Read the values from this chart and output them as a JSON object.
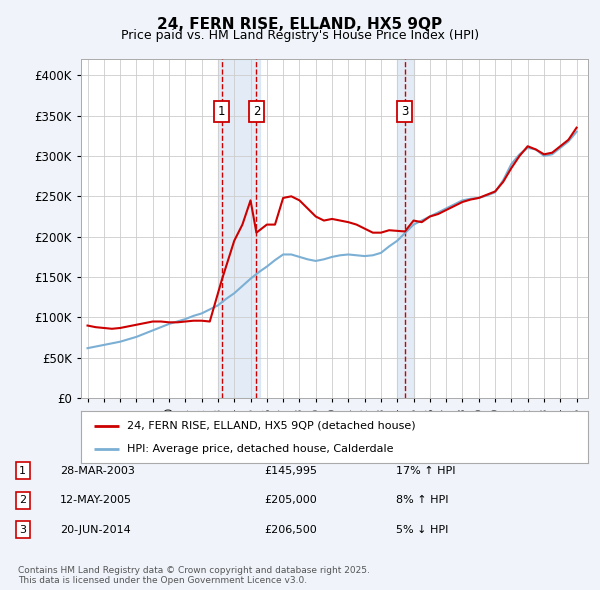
{
  "title1": "24, FERN RISE, ELLAND, HX5 9QP",
  "title2": "Price paid vs. HM Land Registry's House Price Index (HPI)",
  "legend_line1": "24, FERN RISE, ELLAND, HX5 9QP (detached house)",
  "legend_line2": "HPI: Average price, detached house, Calderdale",
  "footer": "Contains HM Land Registry data © Crown copyright and database right 2025.\nThis data is licensed under the Open Government Licence v3.0.",
  "sale_color": "#cc0000",
  "hpi_color": "#7bafd4",
  "bg_color": "#f0f4fa",
  "plot_bg": "#ffffff",
  "grid_color": "#cccccc",
  "transactions": [
    {
      "num": 1,
      "date": "28-MAR-2003",
      "price": 145995,
      "pct": "17%",
      "dir": "↑"
    },
    {
      "num": 2,
      "date": "12-MAY-2005",
      "price": 205000,
      "pct": "8%",
      "dir": "↑"
    },
    {
      "num": 3,
      "date": "20-JUN-2014",
      "price": 206500,
      "pct": "5%",
      "dir": "↓"
    }
  ],
  "vline_dates": [
    2003.23,
    2005.36,
    2014.47
  ],
  "vline_shades": [
    [
      2003.0,
      2005.6
    ],
    [
      2014.0,
      2015.0
    ]
  ],
  "ylim": [
    0,
    420000
  ],
  "yticks": [
    0,
    50000,
    100000,
    150000,
    200000,
    250000,
    300000,
    350000,
    400000
  ],
  "hpi_x": [
    1995.0,
    1995.5,
    1996.0,
    1996.5,
    1997.0,
    1997.5,
    1998.0,
    1998.5,
    1999.0,
    1999.5,
    2000.0,
    2000.5,
    2001.0,
    2001.5,
    2002.0,
    2002.5,
    2003.0,
    2003.5,
    2004.0,
    2004.5,
    2005.0,
    2005.5,
    2006.0,
    2006.5,
    2007.0,
    2007.5,
    2008.0,
    2008.5,
    2009.0,
    2009.5,
    2010.0,
    2010.5,
    2011.0,
    2011.5,
    2012.0,
    2012.5,
    2013.0,
    2013.5,
    2014.0,
    2014.5,
    2015.0,
    2015.5,
    2016.0,
    2016.5,
    2017.0,
    2017.5,
    2018.0,
    2018.5,
    2019.0,
    2019.5,
    2020.0,
    2020.5,
    2021.0,
    2021.5,
    2022.0,
    2022.5,
    2023.0,
    2023.5,
    2024.0,
    2024.5,
    2025.0
  ],
  "hpi_y": [
    62000,
    64000,
    66000,
    68000,
    70000,
    73000,
    76000,
    80000,
    84000,
    88000,
    92000,
    95000,
    98000,
    102000,
    105000,
    110000,
    115000,
    123000,
    130000,
    139000,
    148000,
    156000,
    163000,
    171000,
    178000,
    178000,
    175000,
    172000,
    170000,
    172000,
    175000,
    177000,
    178000,
    177000,
    176000,
    177000,
    180000,
    188000,
    195000,
    205000,
    215000,
    220000,
    225000,
    230000,
    235000,
    240000,
    245000,
    247000,
    248000,
    251000,
    255000,
    270000,
    290000,
    302000,
    310000,
    308000,
    300000,
    302000,
    310000,
    318000,
    330000
  ],
  "red_x": [
    1995.0,
    1995.5,
    1996.0,
    1996.5,
    1997.0,
    1997.5,
    1998.0,
    1998.5,
    1999.0,
    1999.5,
    2000.0,
    2000.5,
    2001.0,
    2001.5,
    2002.0,
    2002.5,
    2003.23,
    2004.0,
    2004.5,
    2005.0,
    2005.36,
    2006.0,
    2006.5,
    2007.0,
    2007.5,
    2008.0,
    2008.5,
    2009.0,
    2009.5,
    2010.0,
    2010.5,
    2011.0,
    2011.5,
    2012.0,
    2012.5,
    2013.0,
    2013.5,
    2014.47,
    2015.0,
    2015.5,
    2016.0,
    2016.5,
    2017.0,
    2017.5,
    2018.0,
    2018.5,
    2019.0,
    2019.5,
    2020.0,
    2020.5,
    2021.0,
    2021.5,
    2022.0,
    2022.5,
    2023.0,
    2023.5,
    2024.0,
    2024.5,
    2025.0
  ],
  "red_y": [
    90000,
    88000,
    87000,
    86000,
    87000,
    89000,
    91000,
    93000,
    95000,
    95000,
    94000,
    94000,
    95000,
    96000,
    96000,
    95000,
    145995,
    195000,
    215000,
    245000,
    205000,
    215000,
    215000,
    248000,
    250000,
    245000,
    235000,
    225000,
    220000,
    222000,
    220000,
    218000,
    215000,
    210000,
    205000,
    205000,
    208000,
    206500,
    220000,
    218000,
    225000,
    228000,
    233000,
    238000,
    243000,
    246000,
    248000,
    252000,
    256000,
    268000,
    285000,
    300000,
    312000,
    308000,
    302000,
    304000,
    312000,
    320000,
    335000
  ],
  "sale_years": [
    2003.23,
    2005.36,
    2014.47
  ],
  "sale_prices": [
    145995,
    205000,
    206500
  ]
}
